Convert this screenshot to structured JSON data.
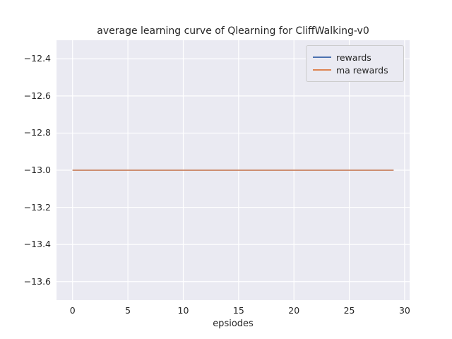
{
  "chart_data": {
    "type": "line",
    "title": "average learning curve of Qlearning for CliffWalking-v0",
    "xlabel": "epsiodes",
    "ylabel": "",
    "xlim": [
      -1.45,
      30.45
    ],
    "ylim": [
      -13.7,
      -12.3
    ],
    "xticks": [
      0,
      5,
      10,
      15,
      20,
      25,
      30
    ],
    "yticks": [
      -12.4,
      -12.6,
      -12.8,
      -13.0,
      -13.2,
      -13.4,
      -13.6
    ],
    "grid": true,
    "grid_color": "#ffffff",
    "plot_background": "#eaeaf2",
    "legend_position": "upper right",
    "series": [
      {
        "name": "rewards",
        "color": "#4c72b0",
        "x": [
          0,
          29
        ],
        "y": [
          -13.0,
          -13.0
        ]
      },
      {
        "name": "ma rewards",
        "color": "#dd8452",
        "x": [
          0,
          29
        ],
        "y": [
          -13.0,
          -13.0
        ]
      }
    ]
  }
}
